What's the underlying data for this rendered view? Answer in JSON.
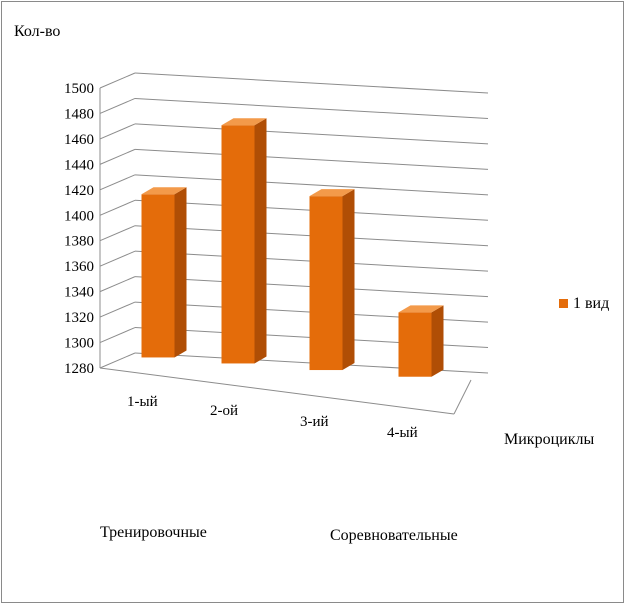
{
  "chart_data": {
    "type": "bar",
    "ylabel": "Кол-во",
    "xlabel": "Микроциклы",
    "categories": [
      "1-ый",
      "2-ой",
      "3-ий",
      "4-ый"
    ],
    "series": [
      {
        "name": "1 вид",
        "values": [
          1417,
          1480,
          1426,
          1334
        ]
      }
    ],
    "ylim": [
      1280,
      1500
    ],
    "yticks": [
      "1500",
      "1480",
      "1460",
      "1440",
      "1420",
      "1400",
      "1380",
      "1360",
      "1340",
      "1320",
      "1300",
      "1280"
    ],
    "group_labels": [
      "Тренировочные",
      "Соревновательные"
    ],
    "legend_position": "right",
    "colors": {
      "bar_front": "#E46C0A",
      "bar_side": "#B04E05",
      "bar_top": "#F39A4A",
      "grid": "#8c8c8c"
    }
  }
}
